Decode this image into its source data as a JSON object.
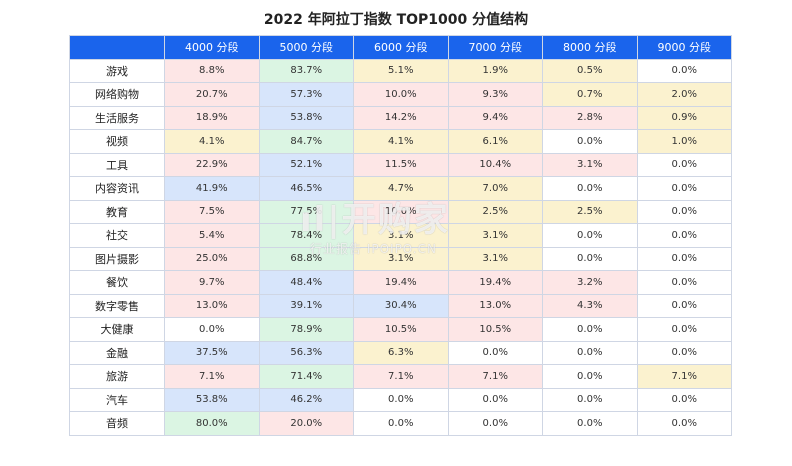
{
  "chart_data": {
    "type": "table",
    "title": "2022 年阿拉丁指数 TOP1000 分值结构",
    "columns": [
      "4000 分段",
      "5000 分段",
      "6000 分段",
      "7000 分段",
      "8000 分段",
      "9000 分段"
    ],
    "rows": [
      {
        "category": "游戏",
        "values": [
          "8.8%",
          "83.7%",
          "5.1%",
          "1.9%",
          "0.5%",
          "0.0%"
        ]
      },
      {
        "category": "网络购物",
        "values": [
          "20.7%",
          "57.3%",
          "10.0%",
          "9.3%",
          "0.7%",
          "2.0%"
        ]
      },
      {
        "category": "生活服务",
        "values": [
          "18.9%",
          "53.8%",
          "14.2%",
          "9.4%",
          "2.8%",
          "0.9%"
        ]
      },
      {
        "category": "视频",
        "values": [
          "4.1%",
          "84.7%",
          "4.1%",
          "6.1%",
          "0.0%",
          "1.0%"
        ]
      },
      {
        "category": "工具",
        "values": [
          "22.9%",
          "52.1%",
          "11.5%",
          "10.4%",
          "3.1%",
          "0.0%"
        ]
      },
      {
        "category": "内容资讯",
        "values": [
          "41.9%",
          "46.5%",
          "4.7%",
          "7.0%",
          "0.0%",
          "0.0%"
        ]
      },
      {
        "category": "教育",
        "values": [
          "7.5%",
          "77.5%",
          "10.0%",
          "2.5%",
          "2.5%",
          "0.0%"
        ]
      },
      {
        "category": "社交",
        "values": [
          "5.4%",
          "78.4%",
          "3.1%",
          "3.1%",
          "0.0%",
          "0.0%"
        ]
      },
      {
        "category": "图片摄影",
        "values": [
          "25.0%",
          "68.8%",
          "3.1%",
          "3.1%",
          "0.0%",
          "0.0%"
        ]
      },
      {
        "category": "餐饮",
        "values": [
          "9.7%",
          "48.4%",
          "19.4%",
          "19.4%",
          "3.2%",
          "0.0%"
        ]
      },
      {
        "category": "数字零售",
        "values": [
          "13.0%",
          "39.1%",
          "30.4%",
          "13.0%",
          "4.3%",
          "0.0%"
        ]
      },
      {
        "category": "大健康",
        "values": [
          "0.0%",
          "78.9%",
          "10.5%",
          "10.5%",
          "0.0%",
          "0.0%"
        ]
      },
      {
        "category": "金融",
        "values": [
          "37.5%",
          "56.3%",
          "6.3%",
          "0.0%",
          "0.0%",
          "0.0%"
        ]
      },
      {
        "category": "旅游",
        "values": [
          "7.1%",
          "71.4%",
          "7.1%",
          "7.1%",
          "0.0%",
          "7.1%"
        ]
      },
      {
        "category": "汽车",
        "values": [
          "53.8%",
          "46.2%",
          "0.0%",
          "0.0%",
          "0.0%",
          "0.0%"
        ]
      },
      {
        "category": "音频",
        "values": [
          "80.0%",
          "20.0%",
          "0.0%",
          "0.0%",
          "0.0%",
          "0.0%"
        ]
      }
    ],
    "cell_colors": [
      [
        "#fde6e6",
        "#dbf5e3",
        "#fbf2cf",
        "#fbf2cf",
        "#fbf2cf",
        "#ffffff"
      ],
      [
        "#fde6e6",
        "#d7e5fb",
        "#fde6e6",
        "#fde6e6",
        "#fbf2cf",
        "#fbf2cf"
      ],
      [
        "#fde6e6",
        "#d7e5fb",
        "#fde6e6",
        "#fde6e6",
        "#fde6e6",
        "#fbf2cf"
      ],
      [
        "#fbf2cf",
        "#dbf5e3",
        "#fbf2cf",
        "#fbf2cf",
        "#ffffff",
        "#fbf2cf"
      ],
      [
        "#fde6e6",
        "#d7e5fb",
        "#fde6e6",
        "#fde6e6",
        "#fde6e6",
        "#ffffff"
      ],
      [
        "#d7e5fb",
        "#d7e5fb",
        "#fbf2cf",
        "#fbf2cf",
        "#ffffff",
        "#ffffff"
      ],
      [
        "#fde6e6",
        "#dbf5e3",
        "#fde6e6",
        "#fbf2cf",
        "#fbf2cf",
        "#ffffff"
      ],
      [
        "#fde6e6",
        "#dbf5e3",
        "#fbf2cf",
        "#fbf2cf",
        "#ffffff",
        "#ffffff"
      ],
      [
        "#fde6e6",
        "#dbf5e3",
        "#fbf2cf",
        "#fbf2cf",
        "#ffffff",
        "#ffffff"
      ],
      [
        "#fde6e6",
        "#d7e5fb",
        "#fde6e6",
        "#fde6e6",
        "#fde6e6",
        "#ffffff"
      ],
      [
        "#fde6e6",
        "#d7e5fb",
        "#d7e5fb",
        "#fde6e6",
        "#fde6e6",
        "#ffffff"
      ],
      [
        "#ffffff",
        "#dbf5e3",
        "#fde6e6",
        "#fde6e6",
        "#ffffff",
        "#ffffff"
      ],
      [
        "#d7e5fb",
        "#d7e5fb",
        "#fbf2cf",
        "#ffffff",
        "#ffffff",
        "#ffffff"
      ],
      [
        "#fde6e6",
        "#dbf5e3",
        "#fde6e6",
        "#fde6e6",
        "#ffffff",
        "#fbf2cf"
      ],
      [
        "#d7e5fb",
        "#d7e5fb",
        "#ffffff",
        "#ffffff",
        "#ffffff",
        "#ffffff"
      ],
      [
        "#dbf5e3",
        "#fde6e6",
        "#ffffff",
        "#ffffff",
        "#ffffff",
        "#ffffff"
      ]
    ],
    "header_color": "#1a64ec"
  },
  "watermark": {
    "main": "ıl|开购家",
    "sub": "行业报告 IPOIPO.CN"
  }
}
